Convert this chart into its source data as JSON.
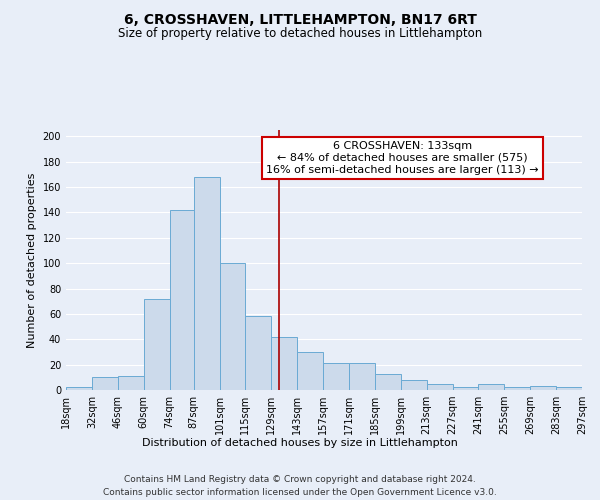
{
  "title": "6, CROSSHAVEN, LITTLEHAMPTON, BN17 6RT",
  "subtitle": "Size of property relative to detached houses in Littlehampton",
  "xlabel": "Distribution of detached houses by size in Littlehampton",
  "ylabel": "Number of detached properties",
  "footnote1": "Contains HM Land Registry data © Crown copyright and database right 2024.",
  "footnote2": "Contains public sector information licensed under the Open Government Licence v3.0.",
  "bins": [
    18,
    32,
    46,
    60,
    74,
    87,
    101,
    115,
    129,
    143,
    157,
    171,
    185,
    199,
    213,
    227,
    241,
    255,
    269,
    283,
    297
  ],
  "bin_labels": [
    "18sqm",
    "32sqm",
    "46sqm",
    "60sqm",
    "74sqm",
    "87sqm",
    "101sqm",
    "115sqm",
    "129sqm",
    "143sqm",
    "157sqm",
    "171sqm",
    "185sqm",
    "199sqm",
    "213sqm",
    "227sqm",
    "241sqm",
    "255sqm",
    "269sqm",
    "283sqm",
    "297sqm"
  ],
  "values": [
    2,
    10,
    11,
    72,
    142,
    168,
    100,
    58,
    42,
    30,
    21,
    21,
    13,
    8,
    5,
    2,
    5,
    2,
    3,
    2
  ],
  "bar_color": "#ccdaeb",
  "bar_edge_color": "#6aaad4",
  "property_size": 133,
  "property_label": "6 CROSSHAVEN: 133sqm",
  "smaller_pct": 84,
  "smaller_count": 575,
  "larger_pct": 16,
  "larger_count": 113,
  "vline_color": "#aa0000",
  "annotation_box_color": "#ffffff",
  "annotation_box_edge_color": "#cc0000",
  "ylim": [
    0,
    205
  ],
  "yticks": [
    0,
    20,
    40,
    60,
    80,
    100,
    120,
    140,
    160,
    180,
    200
  ],
  "background_color": "#e8eef8",
  "grid_color": "#ffffff",
  "title_fontsize": 10,
  "subtitle_fontsize": 8.5,
  "xlabel_fontsize": 8,
  "ylabel_fontsize": 8,
  "tick_fontsize": 7,
  "annotation_fontsize": 8,
  "footnote_fontsize": 6.5
}
